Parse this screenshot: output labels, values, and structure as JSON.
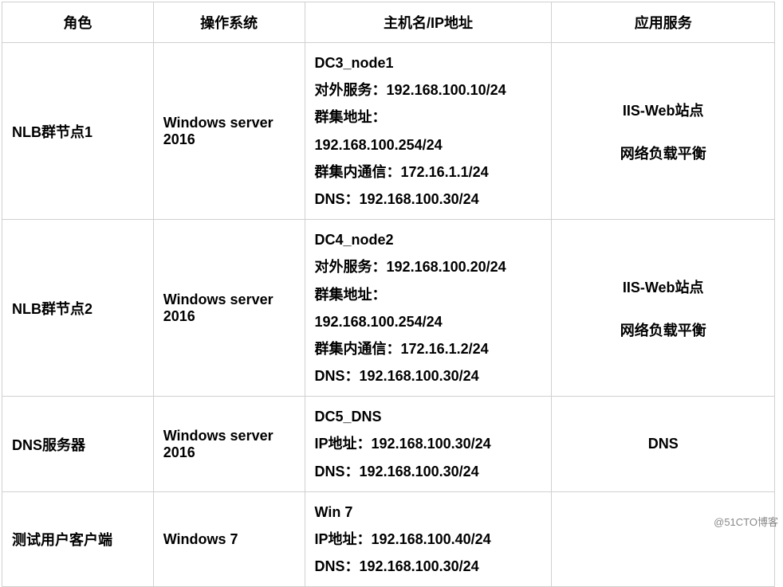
{
  "headers": {
    "role": "角色",
    "os": "操作系统",
    "host": "主机名/IP地址",
    "service": "应用服务"
  },
  "rows": [
    {
      "role": "NLB群节点1",
      "os": "Windows server 2016",
      "host_lines": [
        "DC3_node1",
        "对外服务：192.168.100.10/24",
        "群集地址：",
        "192.168.100.254/24",
        "群集内通信：172.16.1.1/24",
        "DNS：192.168.100.30/24"
      ],
      "service_lines": [
        "IIS-Web站点",
        "网络负载平衡"
      ]
    },
    {
      "role": "NLB群节点2",
      "os": "Windows server 2016",
      "host_lines": [
        "DC4_node2",
        "对外服务：192.168.100.20/24",
        "群集地址：",
        "192.168.100.254/24",
        "群集内通信：172.16.1.2/24",
        "DNS：192.168.100.30/24"
      ],
      "service_lines": [
        "IIS-Web站点",
        "网络负载平衡"
      ]
    },
    {
      "role": "DNS服务器",
      "os": "Windows server 2016",
      "host_lines": [
        "DC5_DNS",
        "IP地址：192.168.100.30/24",
        "DNS：192.168.100.30/24"
      ],
      "service_lines": [
        "DNS"
      ]
    },
    {
      "role": "测试用户客户端",
      "os": "Windows 7",
      "host_lines": [
        "Win 7",
        "IP地址：192.168.100.40/24",
        "DNS：192.168.100.30/24"
      ],
      "service_lines": []
    }
  ],
  "watermark": "@51CTO博客",
  "colors": {
    "border": "#d0d0d0",
    "text": "#000000",
    "background": "#ffffff",
    "watermark": "#888888"
  }
}
